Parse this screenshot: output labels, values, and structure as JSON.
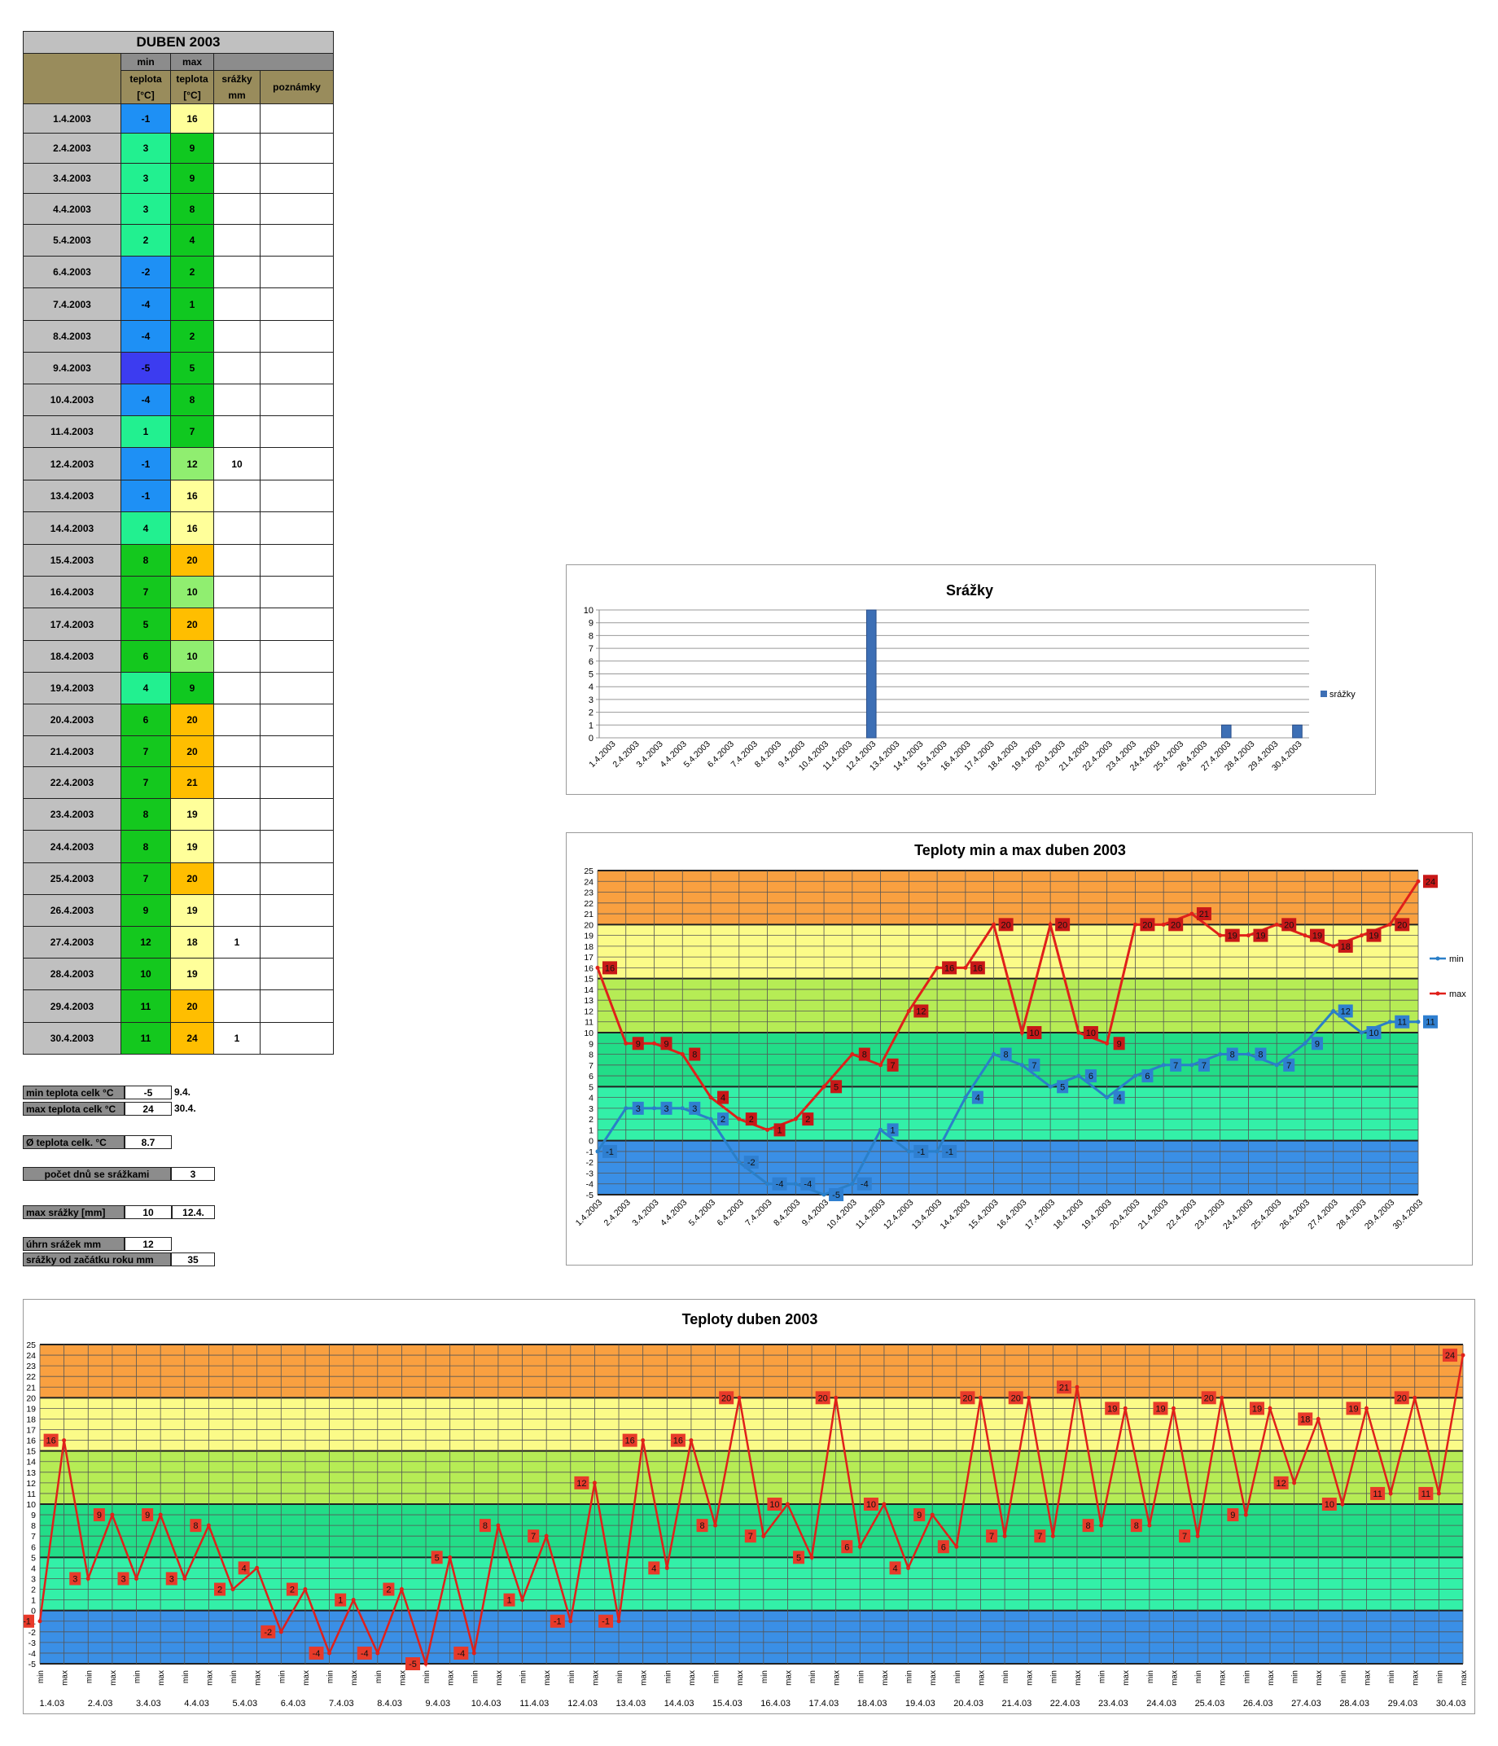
{
  "table": {
    "title": "DUBEN 2003",
    "hdr_min": "min",
    "hdr_max": "max",
    "hdr_teplota": "teplota",
    "hdr_unit": "[°C]",
    "hdr_srazky": "srážky",
    "hdr_mm": "mm",
    "hdr_poznamky": "poznámky",
    "rows": [
      {
        "date": "1.4.2003",
        "min": "-1",
        "max": "16",
        "rain": ""
      },
      {
        "date": "2.4.2003",
        "min": "3",
        "max": "9",
        "rain": ""
      },
      {
        "date": "3.4.2003",
        "min": "3",
        "max": "9",
        "rain": ""
      },
      {
        "date": "4.4.2003",
        "min": "3",
        "max": "8",
        "rain": ""
      },
      {
        "date": "5.4.2003",
        "min": "2",
        "max": "4",
        "rain": ""
      },
      {
        "date": "6.4.2003",
        "min": "-2",
        "max": "2",
        "rain": ""
      },
      {
        "date": "7.4.2003",
        "min": "-4",
        "max": "1",
        "rain": ""
      },
      {
        "date": "8.4.2003",
        "min": "-4",
        "max": "2",
        "rain": ""
      },
      {
        "date": "9.4.2003",
        "min": "-5",
        "max": "5",
        "rain": ""
      },
      {
        "date": "10.4.2003",
        "min": "-4",
        "max": "8",
        "rain": ""
      },
      {
        "date": "11.4.2003",
        "min": "1",
        "max": "7",
        "rain": ""
      },
      {
        "date": "12.4.2003",
        "min": "-1",
        "max": "12",
        "rain": "10"
      },
      {
        "date": "13.4.2003",
        "min": "-1",
        "max": "16",
        "rain": ""
      },
      {
        "date": "14.4.2003",
        "min": "4",
        "max": "16",
        "rain": ""
      },
      {
        "date": "15.4.2003",
        "min": "8",
        "max": "20",
        "rain": ""
      },
      {
        "date": "16.4.2003",
        "min": "7",
        "max": "10",
        "rain": ""
      },
      {
        "date": "17.4.2003",
        "min": "5",
        "max": "20",
        "rain": ""
      },
      {
        "date": "18.4.2003",
        "min": "6",
        "max": "10",
        "rain": ""
      },
      {
        "date": "19.4.2003",
        "min": "4",
        "max": "9",
        "rain": ""
      },
      {
        "date": "20.4.2003",
        "min": "6",
        "max": "20",
        "rain": ""
      },
      {
        "date": "21.4.2003",
        "min": "7",
        "max": "20",
        "rain": ""
      },
      {
        "date": "22.4.2003",
        "min": "7",
        "max": "21",
        "rain": ""
      },
      {
        "date": "23.4.2003",
        "min": "8",
        "max": "19",
        "rain": ""
      },
      {
        "date": "24.4.2003",
        "min": "8",
        "max": "19",
        "rain": ""
      },
      {
        "date": "25.4.2003",
        "min": "7",
        "max": "20",
        "rain": ""
      },
      {
        "date": "26.4.2003",
        "min": "9",
        "max": "19",
        "rain": ""
      },
      {
        "date": "27.4.2003",
        "min": "12",
        "max": "18",
        "rain": "1"
      },
      {
        "date": "28.4.2003",
        "min": "10",
        "max": "19",
        "rain": ""
      },
      {
        "date": "29.4.2003",
        "min": "11",
        "max": "20",
        "rain": ""
      },
      {
        "date": "30.4.2003",
        "min": "11",
        "max": "24",
        "rain": "1"
      }
    ]
  },
  "summary": {
    "min_label": "min teplota celk °C",
    "min_value": "-5",
    "min_date": "9.4.",
    "max_label": "max teplota celk °C",
    "max_value": "24",
    "max_date": "30.4.",
    "avg_label": "Ø teplota celk. °C",
    "avg_value": "8.7",
    "rain_days_label": "počet dnů se srážkami",
    "rain_days_value": "3",
    "max_rain_label": "max srážky [mm]",
    "max_rain_value": "10",
    "max_rain_date": "12.4.",
    "total_rain_label": "úhrn srážek  mm",
    "total_rain_value": "12",
    "ytd_rain_label": "srážky od začátku roku mm",
    "ytd_rain_value": "35"
  },
  "colors": {
    "band_blue": "#3a8fe6",
    "band_teal": "#33f0a8",
    "band_green": "#22dd88",
    "band_lime": "#b6ec55",
    "band_yellow": "#fbfb88",
    "band_orange": "#f9a040",
    "min_line": "#2a7fc8",
    "max_line": "#e0201a",
    "bar_blue": "#3d6fb5"
  },
  "chart_data": [
    {
      "type": "bar",
      "title": "Srážky",
      "categories": [
        "1.4.2003",
        "2.4.2003",
        "3.4.2003",
        "4.4.2003",
        "5.4.2003",
        "6.4.2003",
        "7.4.2003",
        "8.4.2003",
        "9.4.2003",
        "10.4.2003",
        "11.4.2003",
        "12.4.2003",
        "13.4.2003",
        "14.4.2003",
        "15.4.2003",
        "16.4.2003",
        "17.4.2003",
        "18.4.2003",
        "19.4.2003",
        "20.4.2003",
        "21.4.2003",
        "22.4.2003",
        "23.4.2003",
        "24.4.2003",
        "25.4.2003",
        "26.4.2003",
        "27.4.2003",
        "28.4.2003",
        "29.4.2003",
        "30.4.2003"
      ],
      "series": [
        {
          "name": "srážky",
          "values": [
            0,
            0,
            0,
            0,
            0,
            0,
            0,
            0,
            0,
            0,
            0,
            10,
            0,
            0,
            0,
            0,
            0,
            0,
            0,
            0,
            0,
            0,
            0,
            0,
            0,
            0,
            1,
            0,
            0,
            1
          ]
        }
      ],
      "ylim": [
        0,
        10
      ],
      "yticks": [
        "0",
        "1",
        "2",
        "3",
        "4",
        "5",
        "6",
        "7",
        "8",
        "9",
        "10"
      ],
      "legend": "right"
    },
    {
      "type": "line",
      "title": "Teploty min a max duben 2003",
      "categories": [
        "1.4.2003",
        "2.4.2003",
        "3.4.2003",
        "4.4.2003",
        "5.4.2003",
        "6.4.2003",
        "7.4.2003",
        "8.4.2003",
        "9.4.2003",
        "10.4.2003",
        "11.4.2003",
        "12.4.2003",
        "13.4.2003",
        "14.4.2003",
        "15.4.2003",
        "16.4.2003",
        "17.4.2003",
        "18.4.2003",
        "19.4.2003",
        "20.4.2003",
        "21.4.2003",
        "22.4.2003",
        "23.4.2003",
        "24.4.2003",
        "25.4.2003",
        "26.4.2003",
        "27.4.2003",
        "28.4.2003",
        "29.4.2003",
        "30.4.2003"
      ],
      "series": [
        {
          "name": "min",
          "values": [
            -1,
            3,
            3,
            3,
            2,
            -2,
            -4,
            -4,
            -5,
            -4,
            1,
            -1,
            -1,
            4,
            8,
            7,
            5,
            6,
            4,
            6,
            7,
            7,
            8,
            8,
            7,
            9,
            12,
            10,
            11,
            11
          ]
        },
        {
          "name": "max",
          "values": [
            16,
            9,
            9,
            8,
            4,
            2,
            1,
            2,
            5,
            8,
            7,
            12,
            16,
            16,
            20,
            10,
            20,
            10,
            9,
            20,
            20,
            21,
            19,
            19,
            20,
            19,
            18,
            19,
            20,
            24
          ]
        }
      ],
      "ylim": [
        -5,
        25
      ],
      "legend": "right",
      "grid": true
    },
    {
      "type": "line",
      "title": "Teploty duben 2003",
      "date_labels": [
        "1.4.03",
        "2.4.03",
        "3.4.03",
        "4.4.03",
        "5.4.03",
        "6.4.03",
        "7.4.03",
        "8.4.03",
        "9.4.03",
        "10.4.03",
        "11.4.03",
        "12.4.03",
        "13.4.03",
        "14.4.03",
        "15.4.03",
        "16.4.03",
        "17.4.03",
        "18.4.03",
        "19.4.03",
        "20.4.03",
        "21.4.03",
        "22.4.03",
        "23.4.03",
        "24.4.03",
        "25.4.03",
        "26.4.03",
        "27.4.03",
        "28.4.03",
        "29.4.03",
        "30.4.03"
      ],
      "sub_labels": [
        "min",
        "max"
      ],
      "series": [
        {
          "name": "teplota",
          "values": [
            -1,
            16,
            3,
            9,
            3,
            9,
            3,
            8,
            2,
            4,
            -2,
            2,
            -4,
            1,
            -4,
            2,
            -5,
            5,
            -4,
            8,
            1,
            7,
            -1,
            12,
            -1,
            16,
            4,
            16,
            8,
            20,
            7,
            10,
            5,
            20,
            6,
            10,
            4,
            9,
            6,
            20,
            7,
            20,
            7,
            21,
            8,
            19,
            8,
            19,
            7,
            20,
            9,
            19,
            12,
            18,
            10,
            19,
            11,
            20,
            11,
            24
          ]
        }
      ],
      "ylim": [
        -5,
        25
      ],
      "grid": true
    }
  ]
}
